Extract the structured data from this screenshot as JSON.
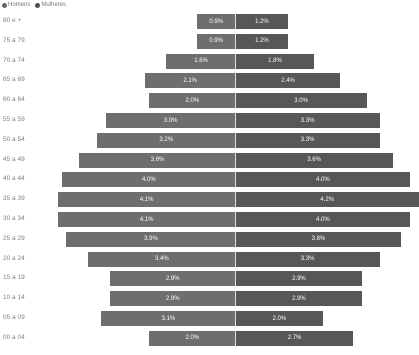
{
  "legend": {
    "items": [
      {
        "label": "Homens",
        "color": "#666666"
      },
      {
        "label": "Mulheres",
        "color": "#4d4d4d"
      }
    ]
  },
  "chart_data": {
    "type": "bar",
    "orientation": "horizontal-pyramid",
    "legend_position": "top-left",
    "grid": false,
    "categories": [
      "80 e +",
      "75 a 79",
      "70 a 74",
      "65 a 69",
      "60 a 64",
      "55 a 59",
      "50 a 54",
      "45 a 49",
      "40 a 44",
      "35 a 39",
      "30 a 34",
      "25 a 29",
      "20 a 24",
      "15 a 19",
      "10 a 14",
      "05 a 09",
      "00 a 04"
    ],
    "series": [
      {
        "name": "Homens",
        "color": "#6e6e6e",
        "values": [
          0.9,
          0.9,
          1.6,
          2.1,
          2.0,
          3.0,
          3.2,
          3.6,
          4.0,
          4.1,
          4.1,
          3.9,
          3.4,
          2.9,
          2.9,
          3.1,
          2.0
        ],
        "labels": [
          "0.9%",
          "0.9%",
          "1.6%",
          "2.1%",
          "2.0%",
          "3.0%",
          "3.2%",
          "3.6%",
          "4.0%",
          "4.1%",
          "4.1%",
          "3.9%",
          "3.4%",
          "2.9%",
          "2.9%",
          "3.1%",
          "2.0%"
        ]
      },
      {
        "name": "Mulheres",
        "color": "#575757",
        "values": [
          1.2,
          1.2,
          1.8,
          2.4,
          3.0,
          3.3,
          3.3,
          3.6,
          4.0,
          4.2,
          4.0,
          3.8,
          3.3,
          2.9,
          2.9,
          2.0,
          2.7
        ],
        "labels": [
          "1.2%",
          "1.2%",
          "1.8%",
          "2.4%",
          "3.0%",
          "3.3%",
          "3.3%",
          "3.6%",
          "4.0%",
          "4.2%",
          "4.0%",
          "3.8%",
          "3.3%",
          "2.9%",
          "2.9%",
          "2.0%",
          "2.7%"
        ]
      }
    ]
  }
}
